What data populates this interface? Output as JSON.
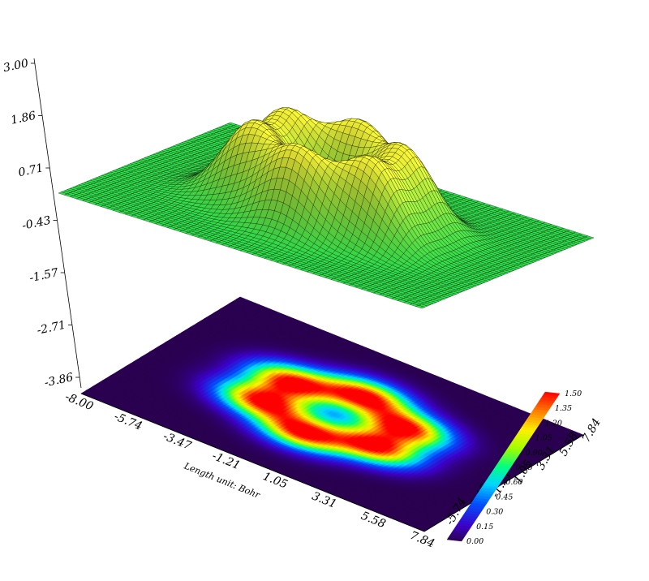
{
  "chart_data": {
    "type": "surface3d",
    "description_mode": "surface-with-projected-heatmap",
    "function": {
      "kind": "six-lobe-orbital",
      "lobes": 6,
      "lobe_angle_step_deg": 60,
      "lobe_peak": 1.5,
      "lobe_radius": 3.0,
      "lobe_sigma": 1.25
    },
    "x_axis": {
      "label": "Length unit: Bohr",
      "range": [
        -8.0,
        7.84
      ],
      "ticks": [
        "-8.00",
        "-5.74",
        "-3.47",
        "-1.21",
        "1.05",
        "3.31",
        "5.58",
        "7.84"
      ]
    },
    "y_axis": {
      "range": [
        -8.0,
        7.84
      ],
      "ticks": [
        "-5.74",
        "-3.47",
        "-1.21",
        "1.05",
        "3.31",
        "5.58",
        "7.84"
      ]
    },
    "z_axis": {
      "range": [
        -4.5,
        3.0
      ],
      "ticks": [
        "3.00",
        "1.86",
        "0.71",
        "-0.43",
        "-1.57",
        "-2.71",
        "-3.86"
      ]
    },
    "surface": {
      "fill_color": "#2ee04a",
      "peak_color": "#ffff3a",
      "mesh_color": "#000000"
    },
    "colorbar": {
      "range": [
        0.0,
        1.5
      ],
      "ticks": [
        "0.00",
        "0.15",
        "0.30",
        "0.45",
        "0.60",
        "0.75",
        "0.90",
        "1.05",
        "1.20",
        "1.35",
        "1.50"
      ],
      "colormap": "rainbow"
    },
    "grid": false
  }
}
